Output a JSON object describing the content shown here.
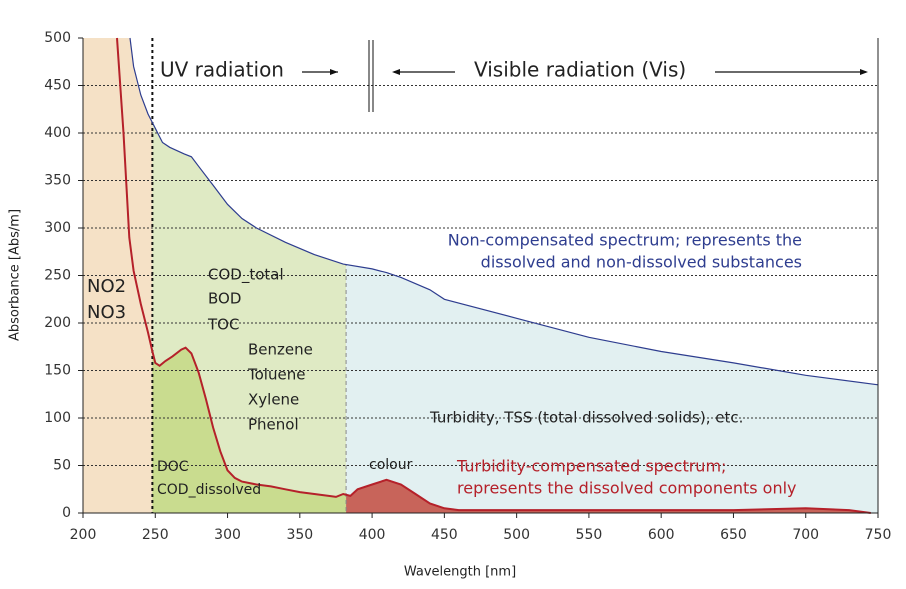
{
  "chart_data": {
    "type": "line",
    "xlabel": "Wavelength [nm]",
    "ylabel": "Absorbance [Abs/m]",
    "xlim": [
      200,
      750
    ],
    "ylim": [
      0,
      500
    ],
    "xticks": [
      200,
      250,
      300,
      350,
      400,
      450,
      500,
      550,
      600,
      650,
      700,
      750
    ],
    "yticks": [
      0,
      50,
      100,
      150,
      200,
      250,
      300,
      350,
      400,
      450,
      500
    ],
    "grid": true,
    "series": [
      {
        "name": "Non-compensated spectrum",
        "color": "#2e3d8f",
        "x": [
          232.5,
          235,
          240,
          245,
          250,
          255,
          260,
          270,
          275,
          280,
          290,
          300,
          310,
          320,
          340,
          360,
          380,
          400,
          410,
          420,
          440,
          450,
          500,
          550,
          600,
          650,
          700,
          750
        ],
        "values": [
          500,
          470,
          440,
          420,
          405,
          390,
          385,
          378,
          375,
          365,
          345,
          325,
          310,
          300,
          285,
          272,
          262,
          257,
          253,
          248,
          235,
          225,
          205,
          185,
          170,
          158,
          145,
          135
        ]
      },
      {
        "name": "Turbidity-compensated spectrum",
        "color": "#b5212a",
        "x": [
          223.5,
          228,
          232,
          235,
          240,
          245,
          248,
          250,
          253,
          257,
          262,
          268,
          271,
          275,
          280,
          285,
          290,
          295,
          300,
          305,
          310,
          320,
          330,
          340,
          350,
          360,
          370,
          375,
          380,
          385,
          390,
          400,
          410,
          420,
          430,
          440,
          450,
          460,
          500,
          550,
          600,
          650,
          700,
          730,
          745
        ],
        "values": [
          500,
          400,
          290,
          255,
          220,
          190,
          170,
          158,
          155,
          160,
          165,
          172,
          174,
          168,
          148,
          120,
          90,
          65,
          45,
          37,
          33,
          30,
          28,
          25,
          22,
          20,
          18,
          17,
          20,
          18,
          25,
          30,
          35,
          30,
          20,
          10,
          5,
          3,
          3,
          3,
          3,
          3,
          5,
          3,
          0
        ]
      }
    ],
    "regions": [
      {
        "from": 200,
        "to": 248,
        "color": "#f5e1c6",
        "inner_color": "#f5e1c6"
      },
      {
        "from": 248,
        "to": 382,
        "color": "#dfeac4",
        "inner_color": "#c9dc8f",
        "line_color": "#111111"
      },
      {
        "from": 382,
        "to": 750,
        "color": "#e2f0f1",
        "inner_color": "#c8645a",
        "line_color": "#888888"
      }
    ],
    "annotations": {
      "uv": "UV radiation",
      "vis": "Visible radiation (Vis)",
      "noncomp": [
        "Non-compensated spectrum; represents the",
        "dissolved and non-dissolved substances"
      ],
      "cod_group": [
        "COD_total",
        "BOD",
        "TOC"
      ],
      "organics": [
        "Benzene",
        "Toluene",
        "Xylene",
        "Phenol"
      ],
      "nitrate": [
        "NO2",
        "NO3"
      ],
      "dissolved": [
        "DOC",
        "COD_dissolved"
      ],
      "colour": "colour",
      "turbidity": "Turbidity, TSS (total dissolved solids), etc.",
      "comp": [
        "Turbidity-compensated spectrum;",
        "represents the dissolved components only"
      ]
    }
  }
}
